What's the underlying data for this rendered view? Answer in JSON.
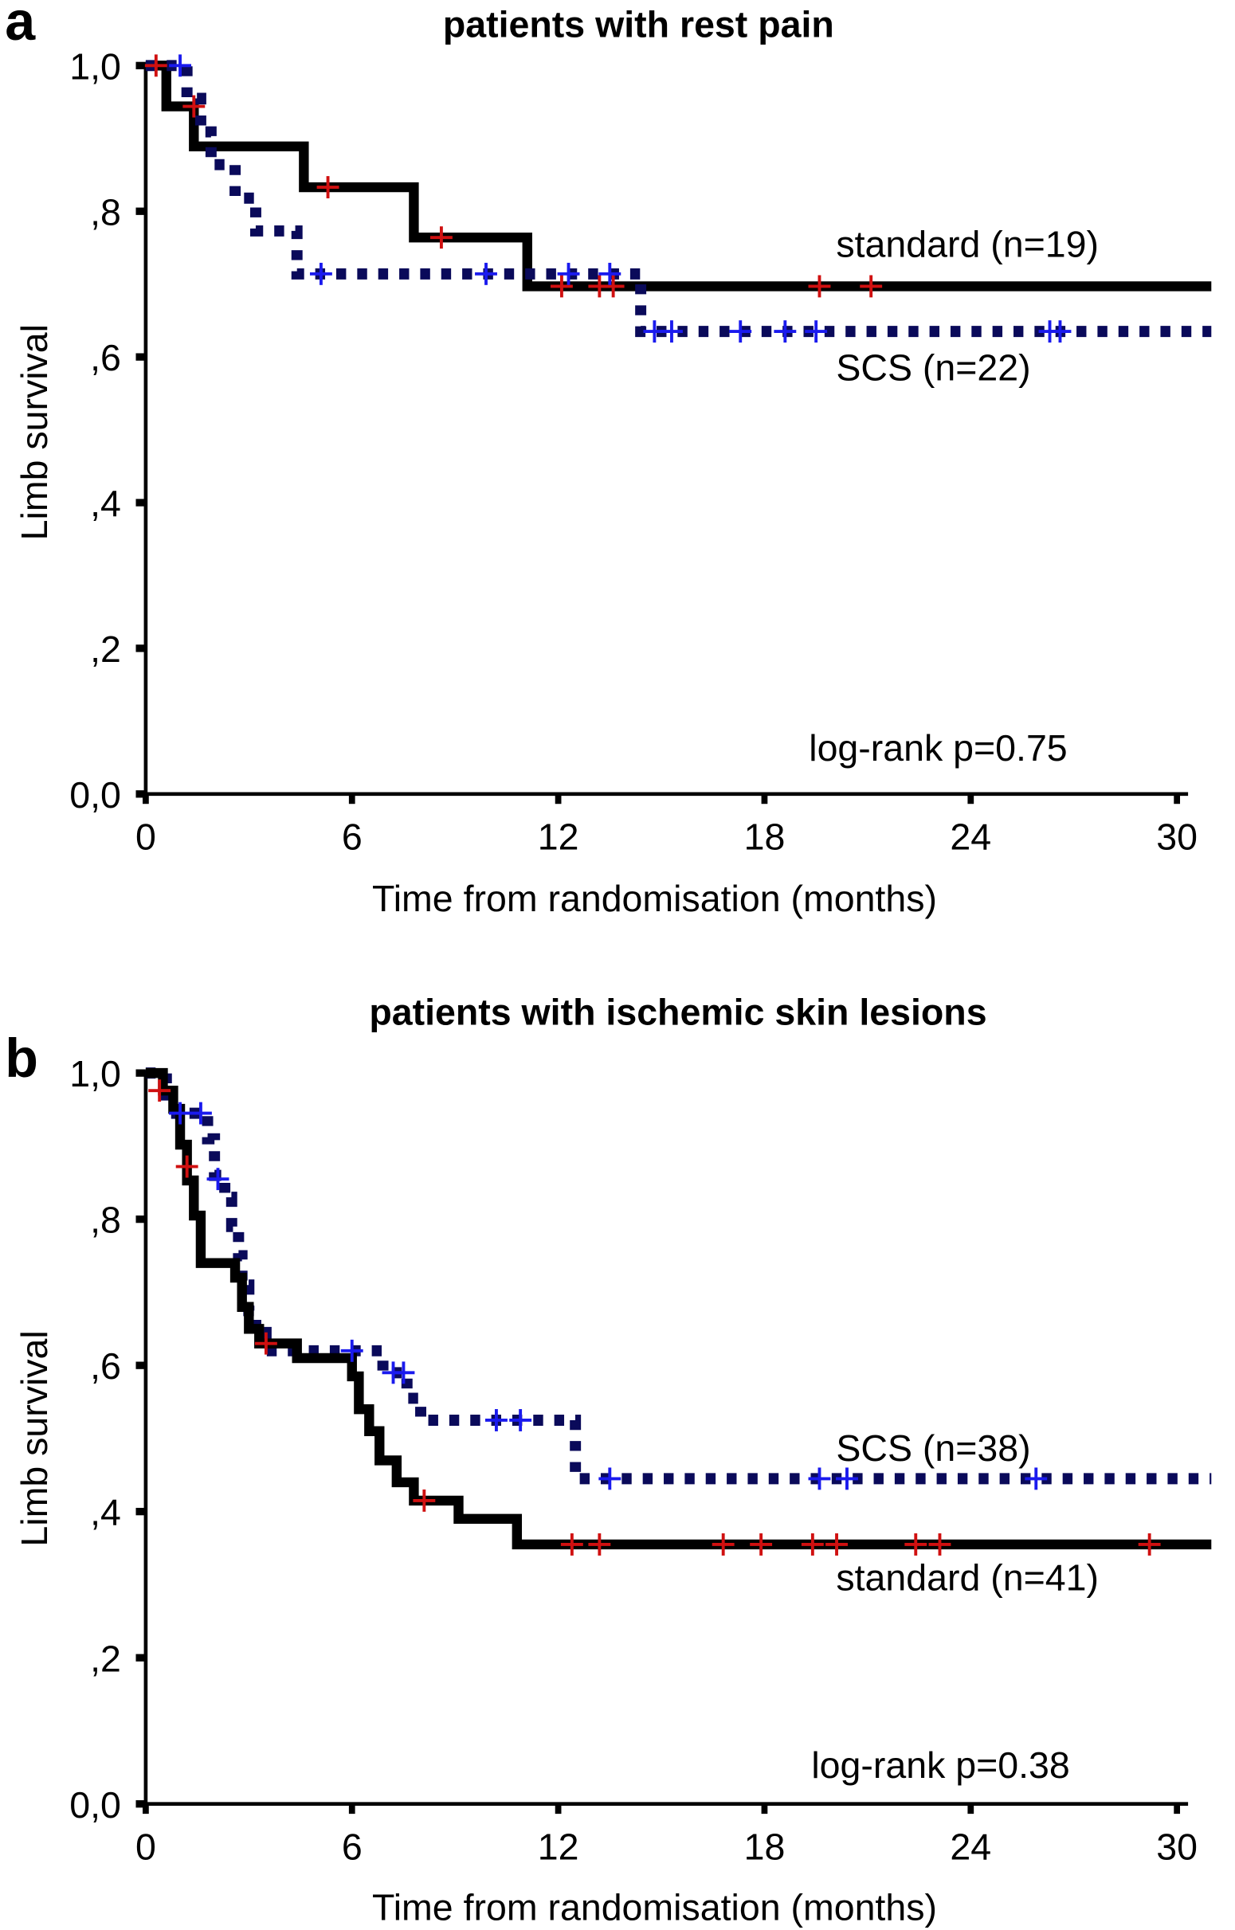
{
  "chart_data": [
    {
      "type": "line",
      "panel_label": "a",
      "title": "patients with rest pain",
      "xlabel": "Time from randomisation (months)",
      "ylabel": "Limb survival",
      "xlim": [
        0,
        30
      ],
      "ylim": [
        0,
        1
      ],
      "xticks": [
        "0",
        "6",
        "12",
        "18",
        "24",
        "30"
      ],
      "yticks": [
        "0,0",
        ",2",
        ",4",
        ",6",
        ",8",
        "1,0"
      ],
      "annotation": "log-rank p=0.75",
      "series": [
        {
          "name": "standard (n=19)",
          "style": "solid",
          "color": "#000000",
          "censor_color": "#d01010",
          "steps": [
            [
              0,
              1.0
            ],
            [
              0.6,
              0.944
            ],
            [
              1.4,
              0.889
            ],
            [
              4.6,
              0.833
            ],
            [
              7.8,
              0.764
            ],
            [
              11.1,
              0.697
            ],
            [
              31,
              0.697
            ]
          ],
          "censored": [
            [
              0.3,
              1.0
            ],
            [
              1.4,
              0.944
            ],
            [
              5.3,
              0.833
            ],
            [
              8.6,
              0.764
            ],
            [
              12.1,
              0.697
            ],
            [
              13.2,
              0.697
            ],
            [
              13.6,
              0.697
            ],
            [
              19.6,
              0.697
            ],
            [
              21.1,
              0.697
            ]
          ]
        },
        {
          "name": "SCS (n=22)",
          "style": "dotted",
          "color": "#0a0a5a",
          "censor_color": "#1a1aee",
          "steps": [
            [
              0,
              1.0
            ],
            [
              1.2,
              0.955
            ],
            [
              1.6,
              0.909
            ],
            [
              1.9,
              0.864
            ],
            [
              2.6,
              0.818
            ],
            [
              3.2,
              0.773
            ],
            [
              4.4,
              0.714
            ],
            [
              14.4,
              0.635
            ],
            [
              31,
              0.635
            ]
          ],
          "censored": [
            [
              1.0,
              1.0
            ],
            [
              5.1,
              0.714
            ],
            [
              9.9,
              0.714
            ],
            [
              12.3,
              0.714
            ],
            [
              13.5,
              0.714
            ],
            [
              14.8,
              0.635
            ],
            [
              15.3,
              0.635
            ],
            [
              17.3,
              0.635
            ],
            [
              18.6,
              0.635
            ],
            [
              19.5,
              0.635
            ],
            [
              26.3,
              0.635
            ],
            [
              26.6,
              0.635
            ]
          ]
        }
      ]
    },
    {
      "type": "line",
      "panel_label": "b",
      "title": "patients with ischemic skin lesions",
      "xlabel": "Time from randomisation (months)",
      "ylabel": "Limb survival",
      "xlim": [
        0,
        30
      ],
      "ylim": [
        0,
        1
      ],
      "xticks": [
        "0",
        "6",
        "12",
        "18",
        "24",
        "30"
      ],
      "yticks": [
        "0,0",
        ",2",
        ",4",
        ",6",
        ",8",
        "1,0"
      ],
      "annotation": "log-rank p=0.38",
      "series": [
        {
          "name": "SCS (n=38)",
          "style": "dotted",
          "color": "#0a0a5a",
          "censor_color": "#1a1aee",
          "steps": [
            [
              0,
              1.0
            ],
            [
              0.6,
              0.97
            ],
            [
              0.9,
              0.945
            ],
            [
              1.8,
              0.91
            ],
            [
              2.0,
              0.86
            ],
            [
              2.3,
              0.83
            ],
            [
              2.5,
              0.79
            ],
            [
              2.7,
              0.75
            ],
            [
              2.8,
              0.71
            ],
            [
              3.0,
              0.675
            ],
            [
              3.2,
              0.645
            ],
            [
              3.5,
              0.62
            ],
            [
              6.9,
              0.59
            ],
            [
              7.6,
              0.555
            ],
            [
              8.0,
              0.525
            ],
            [
              12.5,
              0.445
            ],
            [
              31,
              0.445
            ]
          ],
          "censored": [
            [
              1.0,
              0.945
            ],
            [
              1.6,
              0.945
            ],
            [
              2.1,
              0.855
            ],
            [
              6.0,
              0.62
            ],
            [
              7.2,
              0.59
            ],
            [
              7.5,
              0.59
            ],
            [
              10.2,
              0.525
            ],
            [
              10.9,
              0.525
            ],
            [
              13.5,
              0.445
            ],
            [
              19.6,
              0.445
            ],
            [
              20.4,
              0.445
            ],
            [
              25.9,
              0.445
            ]
          ]
        },
        {
          "name": "standard (n=41)",
          "style": "solid",
          "color": "#000000",
          "censor_color": "#d01010",
          "steps": [
            [
              0,
              1.0
            ],
            [
              0.5,
              0.976
            ],
            [
              0.8,
              0.951
            ],
            [
              1.0,
              0.902
            ],
            [
              1.2,
              0.853
            ],
            [
              1.4,
              0.805
            ],
            [
              1.6,
              0.74
            ],
            [
              2.6,
              0.72
            ],
            [
              2.8,
              0.68
            ],
            [
              3.0,
              0.65
            ],
            [
              3.3,
              0.63
            ],
            [
              4.4,
              0.61
            ],
            [
              6.0,
              0.585
            ],
            [
              6.2,
              0.54
            ],
            [
              6.5,
              0.51
            ],
            [
              6.8,
              0.47
            ],
            [
              7.3,
              0.44
            ],
            [
              7.8,
              0.415
            ],
            [
              9.1,
              0.39
            ],
            [
              10.8,
              0.355
            ],
            [
              31,
              0.355
            ]
          ],
          "censored": [
            [
              0.4,
              0.976
            ],
            [
              1.2,
              0.872
            ],
            [
              3.5,
              0.63
            ],
            [
              8.1,
              0.415
            ],
            [
              12.4,
              0.355
            ],
            [
              13.2,
              0.355
            ],
            [
              16.8,
              0.355
            ],
            [
              17.9,
              0.355
            ],
            [
              19.4,
              0.355
            ],
            [
              20.1,
              0.355
            ],
            [
              22.4,
              0.355
            ],
            [
              23.1,
              0.355
            ],
            [
              29.2,
              0.355
            ]
          ]
        }
      ]
    }
  ]
}
